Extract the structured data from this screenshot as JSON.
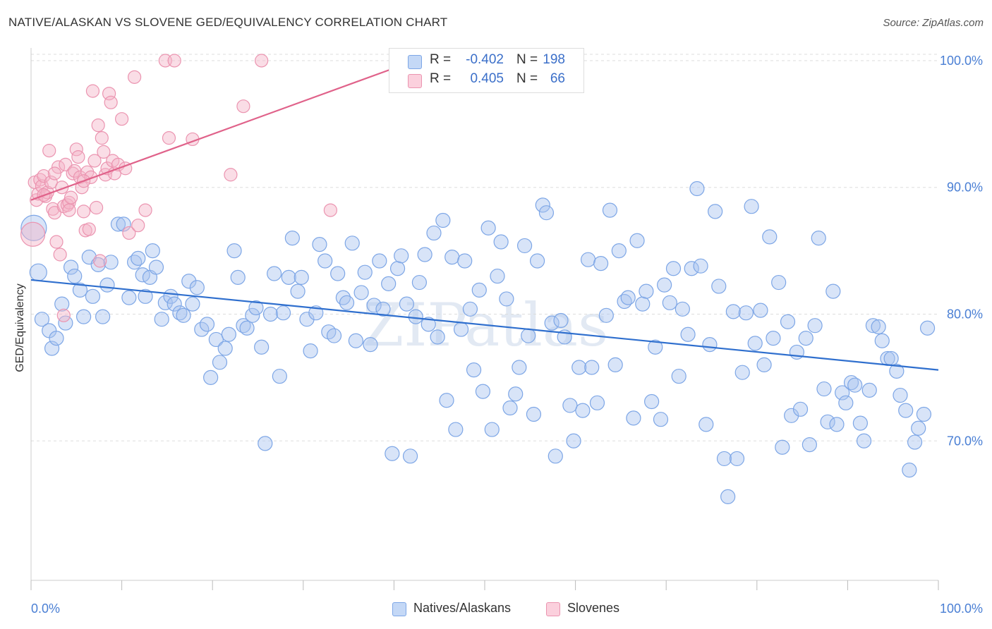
{
  "header": {
    "title": "NATIVE/ALASKAN VS SLOVENE GED/EQUIVALENCY CORRELATION CHART",
    "source": "Source: ZipAtlas.com"
  },
  "watermark": "ZIPatlas",
  "legend": {
    "rows": [
      {
        "r_label": "R =",
        "r_value": "-0.402",
        "n_label": "N =",
        "n_value": "198"
      },
      {
        "r_label": "R =",
        "r_value": "0.405",
        "n_label": "N =",
        "n_value": "66"
      }
    ]
  },
  "chart_data": {
    "type": "scatter",
    "title": "NATIVE/ALASKAN VS SLOVENE GED/EQUIVALENCY CORRELATION CHART",
    "xlabel": "",
    "ylabel": "GED/Equivalency",
    "xlim": [
      0,
      100
    ],
    "ylim": [
      59,
      101
    ],
    "x_tick_labels": [
      "0.0%",
      "100.0%"
    ],
    "y_ticks": [
      70,
      80,
      90,
      100
    ],
    "y_tick_labels": [
      "70.0%",
      "80.0%",
      "90.0%",
      "100.0%"
    ],
    "grid": "horizontal dashed",
    "legend_position": "top-center",
    "colors": {
      "natives": "#a8c4ef",
      "natives_line": "#2f6fce",
      "slovenes": "#f5b3c8",
      "slovenes_line": "#e0628a"
    },
    "series": [
      {
        "name": "Natives/Alaskans",
        "r": -0.402,
        "n": 198,
        "trend": {
          "x": [
            0,
            100
          ],
          "y": [
            82.7,
            75.6
          ]
        },
        "points": [
          [
            0.3,
            86.8
          ],
          [
            0.8,
            83.3
          ],
          [
            1.2,
            79.6
          ],
          [
            2.0,
            78.7
          ],
          [
            2.3,
            77.3
          ],
          [
            2.8,
            78.1
          ],
          [
            3.4,
            80.8
          ],
          [
            3.8,
            79.3
          ],
          [
            4.4,
            83.7
          ],
          [
            4.8,
            83.0
          ],
          [
            5.4,
            81.9
          ],
          [
            5.8,
            79.8
          ],
          [
            6.4,
            84.5
          ],
          [
            6.8,
            81.4
          ],
          [
            7.4,
            83.9
          ],
          [
            7.9,
            79.8
          ],
          [
            8.4,
            82.3
          ],
          [
            8.8,
            84.1
          ],
          [
            9.6,
            87.1
          ],
          [
            10.2,
            87.1
          ],
          [
            10.8,
            81.3
          ],
          [
            11.4,
            84.1
          ],
          [
            11.8,
            84.4
          ],
          [
            12.3,
            83.1
          ],
          [
            12.6,
            81.4
          ],
          [
            13.1,
            82.9
          ],
          [
            13.4,
            85.0
          ],
          [
            13.8,
            83.7
          ],
          [
            14.4,
            79.6
          ],
          [
            14.8,
            80.9
          ],
          [
            15.4,
            81.4
          ],
          [
            15.8,
            80.8
          ],
          [
            16.4,
            80.1
          ],
          [
            16.8,
            79.9
          ],
          [
            17.4,
            82.6
          ],
          [
            17.8,
            80.8
          ],
          [
            18.3,
            82.1
          ],
          [
            18.8,
            78.8
          ],
          [
            19.4,
            79.2
          ],
          [
            19.8,
            75.0
          ],
          [
            20.4,
            78.0
          ],
          [
            20.8,
            76.2
          ],
          [
            21.4,
            77.3
          ],
          [
            21.8,
            78.4
          ],
          [
            22.4,
            85.0
          ],
          [
            22.8,
            82.9
          ],
          [
            23.4,
            79.1
          ],
          [
            23.8,
            78.9
          ],
          [
            24.4,
            79.9
          ],
          [
            24.8,
            80.5
          ],
          [
            25.4,
            77.4
          ],
          [
            25.8,
            69.8
          ],
          [
            26.4,
            80.0
          ],
          [
            26.8,
            83.2
          ],
          [
            27.4,
            75.1
          ],
          [
            27.8,
            80.1
          ],
          [
            28.4,
            82.9
          ],
          [
            28.8,
            86.0
          ],
          [
            29.4,
            81.8
          ],
          [
            29.8,
            82.9
          ],
          [
            30.4,
            79.6
          ],
          [
            30.8,
            77.1
          ],
          [
            31.4,
            80.1
          ],
          [
            31.8,
            85.5
          ],
          [
            32.4,
            84.2
          ],
          [
            32.8,
            78.6
          ],
          [
            33.4,
            78.3
          ],
          [
            33.8,
            83.2
          ],
          [
            34.4,
            81.3
          ],
          [
            34.8,
            80.9
          ],
          [
            35.4,
            85.6
          ],
          [
            35.8,
            77.9
          ],
          [
            36.4,
            81.7
          ],
          [
            36.8,
            83.3
          ],
          [
            37.4,
            77.6
          ],
          [
            37.8,
            80.7
          ],
          [
            38.4,
            84.2
          ],
          [
            38.8,
            80.4
          ],
          [
            39.4,
            82.4
          ],
          [
            39.8,
            69.0
          ],
          [
            40.4,
            83.6
          ],
          [
            40.8,
            84.6
          ],
          [
            41.4,
            80.8
          ],
          [
            41.8,
            68.8
          ],
          [
            42.4,
            79.8
          ],
          [
            42.8,
            82.5
          ],
          [
            43.4,
            84.7
          ],
          [
            43.8,
            79.2
          ],
          [
            44.4,
            86.4
          ],
          [
            44.8,
            78.2
          ],
          [
            45.4,
            87.4
          ],
          [
            45.8,
            73.2
          ],
          [
            46.4,
            84.5
          ],
          [
            46.8,
            70.9
          ],
          [
            47.4,
            78.8
          ],
          [
            47.8,
            84.2
          ],
          [
            48.4,
            80.4
          ],
          [
            48.8,
            75.6
          ],
          [
            49.4,
            81.9
          ],
          [
            49.8,
            73.9
          ],
          [
            50.4,
            86.8
          ],
          [
            50.8,
            70.9
          ],
          [
            51.4,
            83.0
          ],
          [
            51.8,
            85.7
          ],
          [
            52.4,
            81.2
          ],
          [
            52.8,
            72.6
          ],
          [
            53.4,
            73.7
          ],
          [
            53.8,
            75.8
          ],
          [
            54.4,
            85.4
          ],
          [
            54.8,
            78.3
          ],
          [
            55.4,
            72.1
          ],
          [
            55.8,
            84.2
          ],
          [
            56.4,
            88.6
          ],
          [
            56.8,
            88.0
          ],
          [
            57.4,
            79.3
          ],
          [
            57.8,
            68.8
          ],
          [
            58.4,
            79.5
          ],
          [
            58.8,
            78.2
          ],
          [
            59.4,
            72.8
          ],
          [
            59.8,
            70.0
          ],
          [
            60.4,
            75.8
          ],
          [
            60.8,
            72.4
          ],
          [
            61.4,
            84.3
          ],
          [
            61.8,
            75.8
          ],
          [
            62.4,
            73.0
          ],
          [
            62.8,
            84.0
          ],
          [
            63.4,
            79.9
          ],
          [
            63.8,
            88.2
          ],
          [
            64.4,
            76.0
          ],
          [
            64.8,
            85.0
          ],
          [
            65.4,
            81.0
          ],
          [
            65.8,
            81.3
          ],
          [
            66.4,
            71.8
          ],
          [
            66.8,
            85.8
          ],
          [
            67.4,
            80.8
          ],
          [
            67.8,
            81.8
          ],
          [
            68.4,
            73.1
          ],
          [
            68.8,
            77.4
          ],
          [
            69.4,
            71.7
          ],
          [
            69.8,
            82.3
          ],
          [
            70.4,
            80.9
          ],
          [
            70.8,
            83.6
          ],
          [
            71.4,
            75.1
          ],
          [
            71.8,
            80.4
          ],
          [
            72.4,
            78.4
          ],
          [
            72.8,
            83.6
          ],
          [
            73.4,
            89.9
          ],
          [
            73.8,
            83.8
          ],
          [
            74.4,
            71.3
          ],
          [
            74.8,
            77.6
          ],
          [
            75.4,
            88.1
          ],
          [
            75.8,
            82.2
          ],
          [
            76.4,
            68.6
          ],
          [
            76.8,
            65.6
          ],
          [
            77.4,
            80.2
          ],
          [
            77.8,
            68.6
          ],
          [
            78.4,
            75.4
          ],
          [
            78.8,
            80.1
          ],
          [
            79.4,
            88.5
          ],
          [
            79.8,
            77.7
          ],
          [
            80.4,
            80.3
          ],
          [
            80.8,
            76.0
          ],
          [
            81.4,
            86.1
          ],
          [
            81.8,
            78.1
          ],
          [
            82.4,
            82.5
          ],
          [
            82.8,
            69.5
          ],
          [
            83.4,
            79.4
          ],
          [
            83.8,
            72.0
          ],
          [
            84.4,
            77.0
          ],
          [
            84.8,
            72.5
          ],
          [
            85.4,
            78.1
          ],
          [
            85.8,
            69.7
          ],
          [
            86.4,
            79.1
          ],
          [
            86.8,
            86.0
          ],
          [
            87.4,
            74.1
          ],
          [
            87.8,
            71.5
          ],
          [
            88.4,
            81.8
          ],
          [
            88.8,
            71.3
          ],
          [
            89.4,
            73.8
          ],
          [
            89.8,
            73.0
          ],
          [
            90.4,
            74.6
          ],
          [
            90.8,
            74.4
          ],
          [
            91.4,
            71.4
          ],
          [
            91.8,
            70.0
          ],
          [
            92.4,
            74.0
          ],
          [
            92.8,
            79.1
          ],
          [
            93.4,
            79.0
          ],
          [
            93.8,
            77.9
          ],
          [
            94.4,
            76.5
          ],
          [
            94.8,
            76.5
          ],
          [
            95.4,
            75.5
          ],
          [
            95.8,
            73.6
          ],
          [
            96.4,
            72.4
          ],
          [
            96.8,
            67.7
          ],
          [
            97.4,
            69.9
          ],
          [
            97.8,
            71.0
          ],
          [
            98.4,
            72.1
          ],
          [
            98.8,
            78.9
          ]
        ]
      },
      {
        "name": "Slovenes",
        "r": 0.405,
        "n": 66,
        "trend": {
          "x": [
            0,
            40
          ],
          "y": [
            89.0,
            99.4
          ]
        },
        "points": [
          [
            0.2,
            86.3
          ],
          [
            0.4,
            90.4
          ],
          [
            0.6,
            89.0
          ],
          [
            0.8,
            89.5
          ],
          [
            1.0,
            90.6
          ],
          [
            1.2,
            90.1
          ],
          [
            1.4,
            90.9
          ],
          [
            1.6,
            89.3
          ],
          [
            1.8,
            89.6
          ],
          [
            2.0,
            92.9
          ],
          [
            2.2,
            90.4
          ],
          [
            2.4,
            88.3
          ],
          [
            2.6,
            88.0
          ],
          [
            2.8,
            85.7
          ],
          [
            3.0,
            91.6
          ],
          [
            3.2,
            84.7
          ],
          [
            3.4,
            90.0
          ],
          [
            3.6,
            88.5
          ],
          [
            3.8,
            91.8
          ],
          [
            4.0,
            88.6
          ],
          [
            4.2,
            88.8
          ],
          [
            4.4,
            89.2
          ],
          [
            4.6,
            91.1
          ],
          [
            4.8,
            91.3
          ],
          [
            5.0,
            93.0
          ],
          [
            5.2,
            92.4
          ],
          [
            5.4,
            90.8
          ],
          [
            5.6,
            90.0
          ],
          [
            5.8,
            88.1
          ],
          [
            6.0,
            86.6
          ],
          [
            6.2,
            91.2
          ],
          [
            6.4,
            86.7
          ],
          [
            6.6,
            90.8
          ],
          [
            6.8,
            97.6
          ],
          [
            7.0,
            92.1
          ],
          [
            7.2,
            88.4
          ],
          [
            7.4,
            94.9
          ],
          [
            7.6,
            84.2
          ],
          [
            7.8,
            93.9
          ],
          [
            8.0,
            92.8
          ],
          [
            8.2,
            91.0
          ],
          [
            8.4,
            91.5
          ],
          [
            8.6,
            97.4
          ],
          [
            8.8,
            96.7
          ],
          [
            9.0,
            92.1
          ],
          [
            9.2,
            91.1
          ],
          [
            9.6,
            91.8
          ],
          [
            10.0,
            95.4
          ],
          [
            10.4,
            91.5
          ],
          [
            10.8,
            86.4
          ],
          [
            11.4,
            98.7
          ],
          [
            11.8,
            87.0
          ],
          [
            12.6,
            88.2
          ],
          [
            14.8,
            100.0
          ],
          [
            15.2,
            93.9
          ],
          [
            15.8,
            100.0
          ],
          [
            17.8,
            93.8
          ],
          [
            22.0,
            91.0
          ],
          [
            23.4,
            96.4
          ],
          [
            25.4,
            100.0
          ],
          [
            33.0,
            88.2
          ],
          [
            3.6,
            79.9
          ],
          [
            1.4,
            89.4
          ],
          [
            2.6,
            91.1
          ],
          [
            4.2,
            88.2
          ],
          [
            5.8,
            90.5
          ]
        ]
      }
    ]
  }
}
